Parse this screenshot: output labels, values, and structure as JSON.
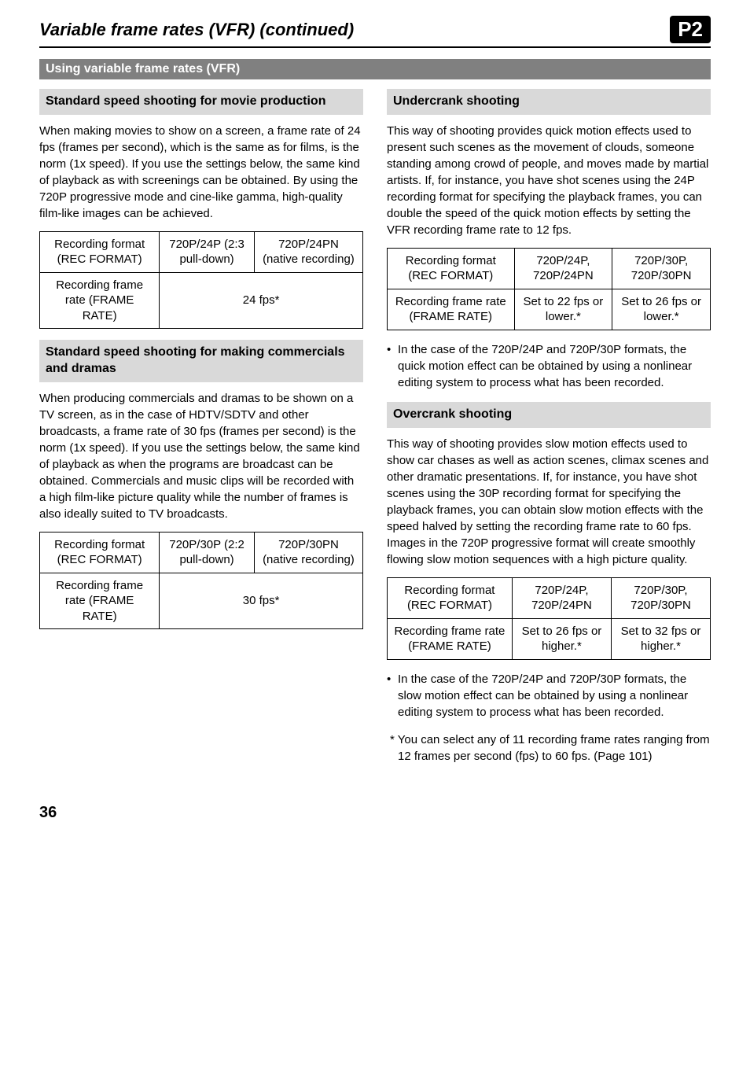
{
  "header": {
    "title": "Variable frame rates (VFR) (continued)",
    "badge": "P2"
  },
  "section_bar": "Using variable frame rates (VFR)",
  "left": {
    "sub1": {
      "heading": "Standard speed shooting for movie production",
      "para": "When making movies to show on a screen, a frame rate of 24 fps (frames per second), which is the same as for films, is the norm (1x speed). If you use the settings below, the same kind of playback as with screenings can be obtained. By using the 720P progressive mode and cine-like gamma, high-quality film-like images can be achieved.",
      "table": {
        "r1c1": "Recording format (REC FORMAT)",
        "r1c2": "720P/24P (2:3 pull-down)",
        "r1c3": "720P/24PN (native recording)",
        "r2c1": "Recording frame rate (FRAME RATE)",
        "r2c2": "24 fps*"
      }
    },
    "sub2": {
      "heading": "Standard speed shooting for making commercials and dramas",
      "para": "When producing commercials and dramas to be shown on a TV screen, as in the case of HDTV/SDTV and other broadcasts, a frame rate of 30 fps (frames per second) is the norm (1x speed). If you use the settings below, the same kind of playback as when the programs are broadcast can be obtained. Commercials and music clips will be recorded with a high film-like picture quality while the number of frames is also ideally suited to TV broadcasts.",
      "table": {
        "r1c1": "Recording format (REC FORMAT)",
        "r1c2": "720P/30P (2:2 pull-down)",
        "r1c3": "720P/30PN (native recording)",
        "r2c1": "Recording frame rate (FRAME RATE)",
        "r2c2": "30 fps*"
      }
    }
  },
  "right": {
    "sub1": {
      "heading": "Undercrank shooting",
      "para": "This way of shooting provides quick motion effects used to present such scenes as the movement of clouds, someone standing among crowd of people, and moves made by martial artists. If, for instance, you have shot scenes using the 24P recording format for specifying the playback frames, you can double the speed of the quick motion effects by setting the VFR recording frame rate to 12 fps.",
      "table": {
        "r1c1": "Recording format (REC FORMAT)",
        "r1c2": "720P/24P, 720P/24PN",
        "r1c3": "720P/30P, 720P/30PN",
        "r2c1": "Recording frame rate (FRAME RATE)",
        "r2c2": "Set to 22 fps or lower.*",
        "r2c3": "Set to 26 fps or lower.*"
      },
      "note": "In the case of the 720P/24P and 720P/30P formats, the quick motion effect can be obtained by using a nonlinear editing system to process what has been recorded."
    },
    "sub2": {
      "heading": "Overcrank shooting",
      "para": "This way of shooting provides slow motion effects used to show car chases as well as action scenes, climax scenes and other dramatic presentations. If, for instance, you have shot scenes using the 30P recording format for specifying the playback frames, you can obtain slow motion effects with the speed halved by setting the recording frame rate to 60 fps. Images in the 720P progressive format will create smoothly flowing slow motion sequences with a high picture quality.",
      "table": {
        "r1c1": "Recording format (REC FORMAT)",
        "r1c2": "720P/24P, 720P/24PN",
        "r1c3": "720P/30P, 720P/30PN",
        "r2c1": "Recording frame rate (FRAME RATE)",
        "r2c2": "Set to 26 fps or higher.*",
        "r2c3": "Set to 32 fps or higher.*"
      },
      "note": "In the case of the 720P/24P and 720P/30P formats, the slow motion effect can be obtained by using a nonlinear editing system to process what has been recorded.",
      "footnote": "* You can select any of 11 recording frame rates ranging from 12 frames per second (fps) to 60 fps. (Page 101)"
    }
  },
  "page_number": "36"
}
